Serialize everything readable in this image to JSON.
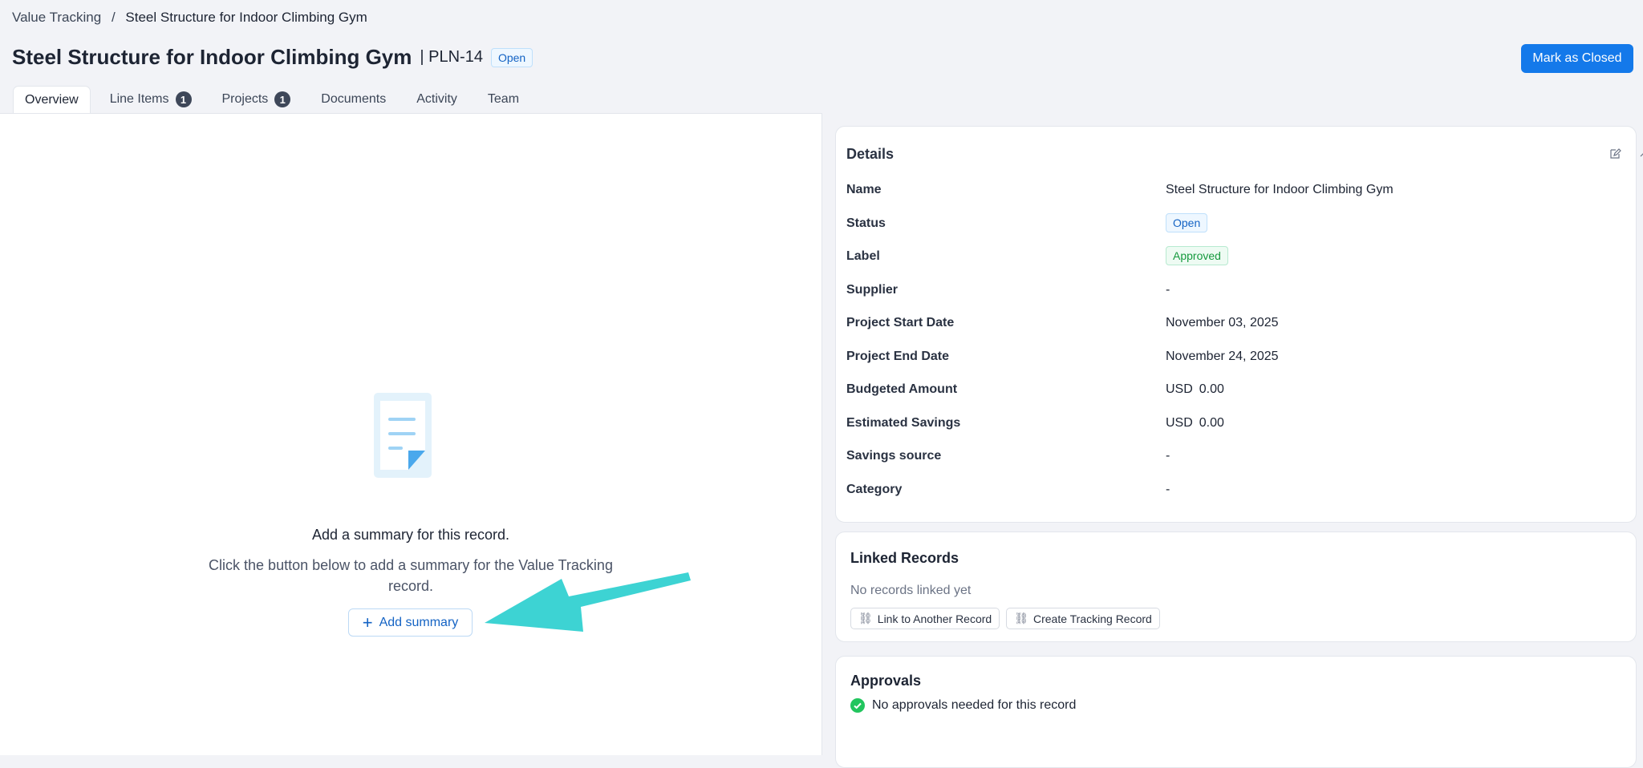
{
  "breadcrumb": {
    "parent": "Value Tracking",
    "separator": "/",
    "current": "Steel Structure for Indoor Climbing Gym"
  },
  "header": {
    "title": "Steel Structure for Indoor Climbing Gym",
    "id": "| PLN-14",
    "status": "Open",
    "mark_closed": "Mark as Closed"
  },
  "tabs": [
    {
      "label": "Overview"
    },
    {
      "label": "Line Items",
      "count": "1"
    },
    {
      "label": "Projects",
      "count": "1"
    },
    {
      "label": "Documents"
    },
    {
      "label": "Activity"
    },
    {
      "label": "Team"
    }
  ],
  "summary": {
    "heading": "Add a summary for this record.",
    "text": "Click the button below to add a summary for the Value Tracking record.",
    "button": "Add summary"
  },
  "details": {
    "title": "Details",
    "rows": [
      {
        "label": "Name",
        "value": "Steel Structure for Indoor Climbing Gym"
      },
      {
        "label": "Status",
        "value": "Open"
      },
      {
        "label": "Label",
        "value": "Approved"
      },
      {
        "label": "Supplier",
        "value": "-"
      },
      {
        "label": "Project Start Date",
        "value": "November 03, 2025"
      },
      {
        "label": "Project End Date",
        "value": "November 24, 2025"
      },
      {
        "label": "Budgeted Amount",
        "currency": "USD",
        "value": "0.00"
      },
      {
        "label": "Estimated Savings",
        "currency": "USD",
        "value": "0.00"
      },
      {
        "label": "Savings source",
        "value": "-"
      },
      {
        "label": "Category",
        "value": "-"
      }
    ]
  },
  "linked": {
    "title": "Linked Records",
    "empty": "No records linked yet",
    "link_btn": "Link to Another Record",
    "create_btn": "Create Tracking Record"
  },
  "approvals": {
    "title": "Approvals",
    "text": "No approvals needed for this record"
  },
  "colors": {
    "primary": "#1479ea",
    "annotation_arrow": "#3dd3d3",
    "success": "#22c55e"
  }
}
